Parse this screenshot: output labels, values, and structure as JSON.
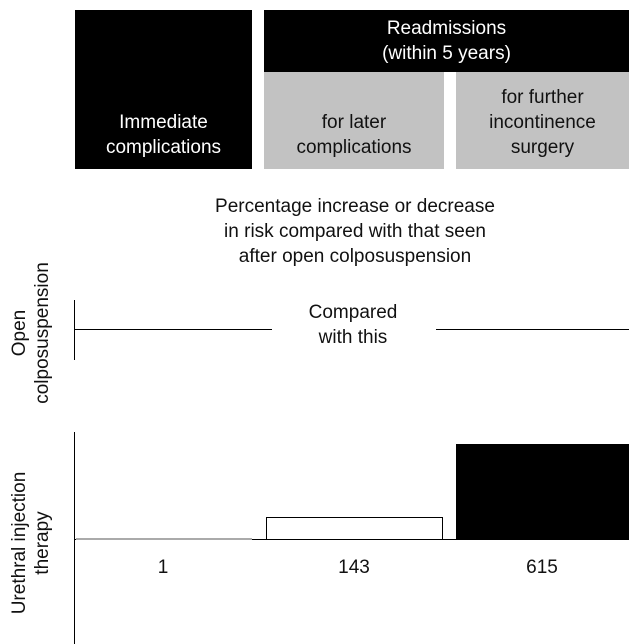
{
  "chart_data": {
    "type": "bar",
    "title": "",
    "caption": "Percentage increase or decrease in risk compared with that seen after open colposuspension",
    "caption_lines": [
      "Percentage increase or decrease",
      "in risk compared with that seen",
      "after open colposuspension"
    ],
    "group_header": [
      "Readmissions",
      "(within 5 years)"
    ],
    "column_headers": [
      {
        "lines": [
          "Immediate",
          "complications"
        ],
        "style": "dark"
      },
      {
        "lines": [
          "for later",
          "complications"
        ],
        "style": "grey"
      },
      {
        "lines": [
          "for further",
          "incontinence",
          "surgery"
        ],
        "style": "grey"
      }
    ],
    "rows": [
      {
        "label_lines": [
          "Open",
          "colposuspension"
        ],
        "note_lines": [
          "Compared",
          "with this"
        ]
      },
      {
        "label_lines": [
          "Urethral injection",
          "therapy"
        ]
      }
    ],
    "categories": [
      "Immediate complications",
      "Readmissions for later complications",
      "Readmissions for further incontinence surgery"
    ],
    "series": [
      {
        "values": [
          1,
          143,
          615
        ],
        "fills": [
          "#000000",
          "#ffffff",
          "#000000"
        ]
      }
    ],
    "value_labels": [
      "1",
      "143",
      "615"
    ]
  }
}
